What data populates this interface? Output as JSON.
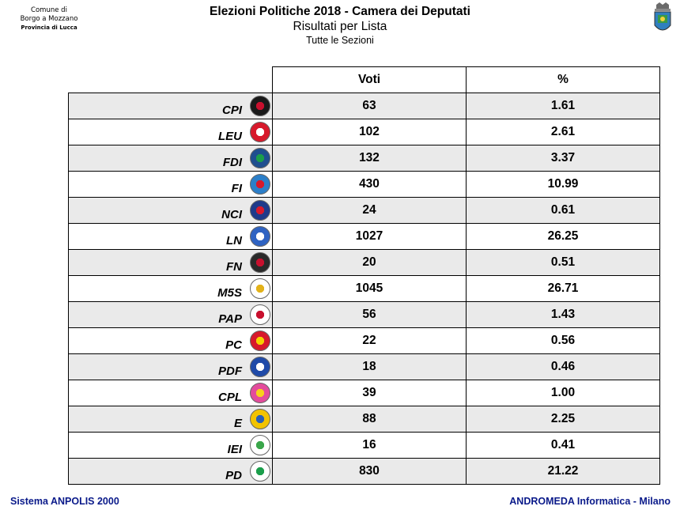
{
  "header": {
    "municipality_line1": "Comune di",
    "municipality_line2": "Borgo a Mozzano",
    "municipality_line3": "Provincia di Lucca",
    "title": "Elezioni Politiche 2018 - Camera dei Deputati",
    "subtitle": "Risultati per Lista",
    "scope": "Tutte le Sezioni"
  },
  "table": {
    "col_votes": "Voti",
    "col_pct": "%",
    "rows": [
      {
        "party": "CPI",
        "votes": "63",
        "pct": "1.61",
        "logo": "cpi-logo-icon",
        "color": "#1a1a1a",
        "accent": "#c8102e"
      },
      {
        "party": "LEU",
        "votes": "102",
        "pct": "2.61",
        "logo": "leu-logo-icon",
        "color": "#d7192b",
        "accent": "#ffffff"
      },
      {
        "party": "FDI",
        "votes": "132",
        "pct": "3.37",
        "logo": "fdi-logo-icon",
        "color": "#1f4f8f",
        "accent": "#1b9e4b"
      },
      {
        "party": "FI",
        "votes": "430",
        "pct": "10.99",
        "logo": "fi-logo-icon",
        "color": "#2c7fc9",
        "accent": "#d7192b"
      },
      {
        "party": "NCI",
        "votes": "24",
        "pct": "0.61",
        "logo": "nci-logo-icon",
        "color": "#1e3a8a",
        "accent": "#d7192b"
      },
      {
        "party": "LN",
        "votes": "1027",
        "pct": "26.25",
        "logo": "ln-logo-icon",
        "color": "#2f63c2",
        "accent": "#ffffff"
      },
      {
        "party": "FN",
        "votes": "20",
        "pct": "0.51",
        "logo": "fn-logo-icon",
        "color": "#2a2a2a",
        "accent": "#c8102e"
      },
      {
        "party": "M5S",
        "votes": "1045",
        "pct": "26.71",
        "logo": "m5s-logo-icon",
        "color": "#ffffff",
        "accent": "#e3b21a"
      },
      {
        "party": "PAP",
        "votes": "56",
        "pct": "1.43",
        "logo": "pap-logo-icon",
        "color": "#ffffff",
        "accent": "#c8102e"
      },
      {
        "party": "PC",
        "votes": "22",
        "pct": "0.56",
        "logo": "pc-logo-icon",
        "color": "#d7192b",
        "accent": "#f5d000"
      },
      {
        "party": "PDF",
        "votes": "18",
        "pct": "0.46",
        "logo": "pdf-logo-icon",
        "color": "#1f4aa8",
        "accent": "#ffffff"
      },
      {
        "party": "CPL",
        "votes": "39",
        "pct": "1.00",
        "logo": "cpl-logo-icon",
        "color": "#e34c9c",
        "accent": "#f7d21a"
      },
      {
        "party": "E",
        "votes": "88",
        "pct": "2.25",
        "logo": "e-logo-icon",
        "color": "#f2c300",
        "accent": "#2b5fb3"
      },
      {
        "party": "IEI",
        "votes": "16",
        "pct": "0.41",
        "logo": "iei-logo-icon",
        "color": "#ffffff",
        "accent": "#3aa64a"
      },
      {
        "party": "PD",
        "votes": "830",
        "pct": "21.22",
        "logo": "pd-logo-icon",
        "color": "#ffffff",
        "accent": "#1b9e4b"
      }
    ]
  },
  "footer": {
    "left": "Sistema ANPOLIS 2000",
    "right": "ANDROMEDA Informatica - Milano",
    "color": "#0a1a8a"
  }
}
